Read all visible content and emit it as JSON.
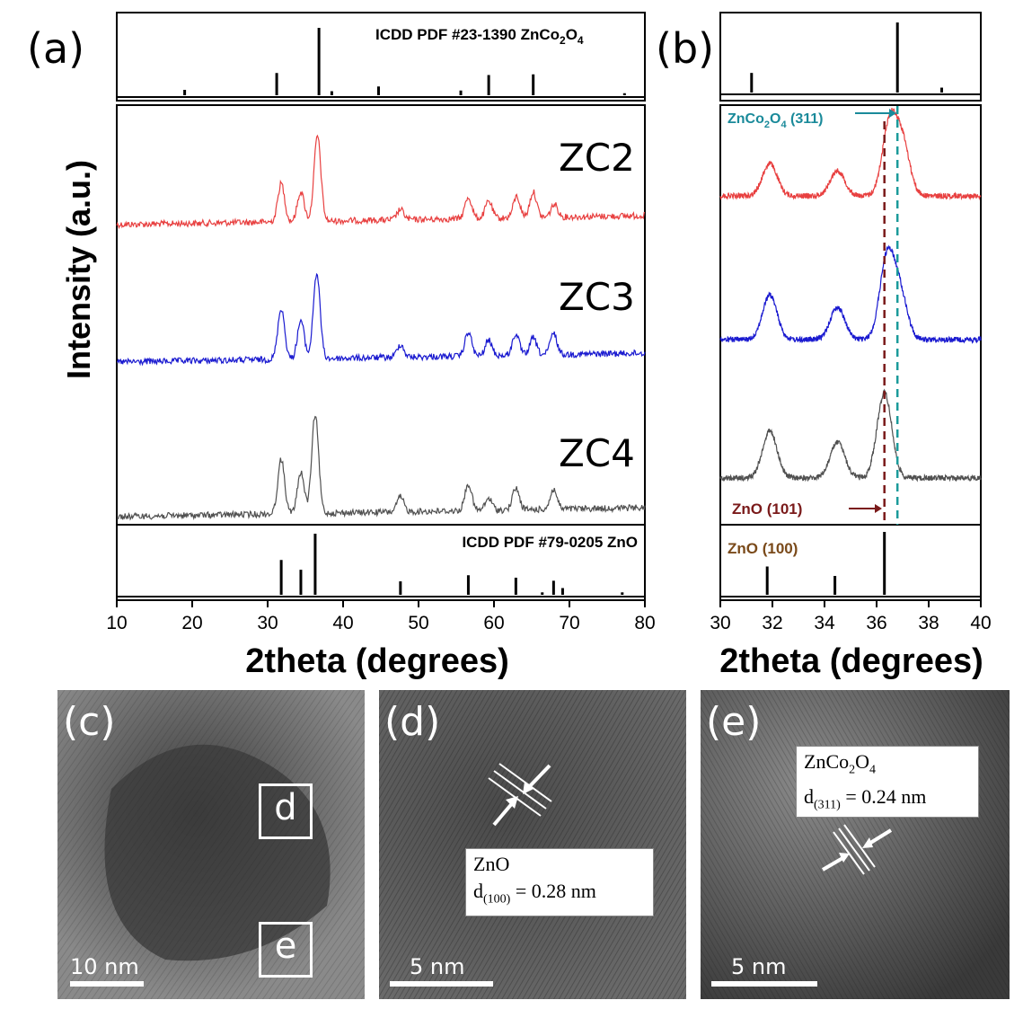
{
  "panel_labels": {
    "a": "(a)",
    "b": "(b)",
    "c": "(c)",
    "d": "(d)",
    "e": "(e)"
  },
  "colors": {
    "ZC2": "#e84040",
    "ZC3": "#1a1ad0",
    "ZC4": "#505050",
    "zno_marker": "#7a1a1a",
    "znco_marker": "#1a9a9a"
  },
  "chart_data": [
    {
      "type": "line",
      "panel": "(a)",
      "xlabel": "2theta (degrees)",
      "ylabel": "Intensity (a.u.)",
      "xlim": [
        10,
        80
      ],
      "xticks": [
        10,
        20,
        30,
        40,
        50,
        60,
        70,
        80
      ],
      "reference_top": {
        "label": "ICDD PDF #23-1390 ZnCo2O4",
        "peaks": [
          [
            19.0,
            0.08
          ],
          [
            31.2,
            0.33
          ],
          [
            36.8,
            1.0
          ],
          [
            38.5,
            0.06
          ],
          [
            44.7,
            0.13
          ],
          [
            55.6,
            0.07
          ],
          [
            59.3,
            0.3
          ],
          [
            65.2,
            0.31
          ],
          [
            77.3,
            0.03
          ]
        ]
      },
      "reference_bottom": {
        "label": "ICDD PDF #79-0205 ZnO",
        "peaks": [
          [
            31.8,
            0.57
          ],
          [
            34.4,
            0.41
          ],
          [
            36.3,
            1.0
          ],
          [
            47.6,
            0.22
          ],
          [
            56.6,
            0.32
          ],
          [
            62.9,
            0.28
          ],
          [
            66.4,
            0.04
          ],
          [
            67.9,
            0.23
          ],
          [
            69.1,
            0.11
          ],
          [
            77.0,
            0.04
          ]
        ]
      },
      "series": [
        {
          "name": "ZC2",
          "peaks": [
            [
              31.8,
              0.45
            ],
            [
              34.4,
              0.35
            ],
            [
              36.6,
              1.0
            ],
            [
              47.6,
              0.12
            ],
            [
              56.6,
              0.25
            ],
            [
              59.3,
              0.2
            ],
            [
              63.0,
              0.25
            ],
            [
              65.2,
              0.3
            ],
            [
              68.0,
              0.15
            ]
          ]
        },
        {
          "name": "ZC3",
          "peaks": [
            [
              31.8,
              0.6
            ],
            [
              34.4,
              0.45
            ],
            [
              36.5,
              1.0
            ],
            [
              47.6,
              0.15
            ],
            [
              56.6,
              0.28
            ],
            [
              59.3,
              0.18
            ],
            [
              62.9,
              0.25
            ],
            [
              65.2,
              0.2
            ],
            [
              67.9,
              0.25
            ]
          ]
        },
        {
          "name": "ZC4",
          "peaks": [
            [
              31.8,
              0.55
            ],
            [
              34.4,
              0.42
            ],
            [
              36.3,
              1.0
            ],
            [
              47.6,
              0.15
            ],
            [
              56.6,
              0.27
            ],
            [
              59.3,
              0.12
            ],
            [
              62.9,
              0.22
            ],
            [
              67.9,
              0.2
            ]
          ]
        }
      ]
    },
    {
      "type": "line",
      "panel": "(b)",
      "xlabel": "2theta (degrees)",
      "xlim": [
        30,
        40
      ],
      "xticks": [
        30,
        32,
        34,
        36,
        38,
        40
      ],
      "reference_top": {
        "peaks": [
          [
            31.2,
            0.28
          ],
          [
            36.8,
            1.0
          ],
          [
            38.5,
            0.07
          ]
        ]
      },
      "reference_bottom": {
        "peaks": [
          [
            31.8,
            0.45
          ],
          [
            34.4,
            0.3
          ],
          [
            36.3,
            1.0
          ]
        ]
      },
      "annotations": {
        "znco": "ZnCo2O4 (311)",
        "zno101": "ZnO (101)",
        "zno100": "ZnO (100)"
      },
      "marker_lines": {
        "zno": 36.3,
        "znco": 36.8
      },
      "series": [
        {
          "name": "ZC2",
          "peaks": [
            [
              31.9,
              0.45
            ],
            [
              34.5,
              0.35
            ],
            [
              36.5,
              1.0
            ],
            [
              37.0,
              0.7
            ]
          ]
        },
        {
          "name": "ZC3",
          "peaks": [
            [
              31.9,
              0.55
            ],
            [
              34.5,
              0.4
            ],
            [
              36.4,
              1.0
            ],
            [
              36.9,
              0.55
            ]
          ]
        },
        {
          "name": "ZC4",
          "peaks": [
            [
              31.9,
              0.55
            ],
            [
              34.5,
              0.42
            ],
            [
              36.3,
              1.0
            ]
          ]
        }
      ]
    }
  ],
  "tem": {
    "c": {
      "box_d": "d",
      "box_e": "e",
      "scale": "10 nm"
    },
    "d": {
      "text_line1": "ZnO",
      "text_line2_d": "d",
      "text_line2_sub": "(100)",
      "text_line2_rest": " = 0.28 nm",
      "scale": "5 nm"
    },
    "e": {
      "text_line1_main": "ZnCo",
      "text_line1_sub1": "2",
      "text_line1_mid": "O",
      "text_line1_sub2": "4",
      "text_line2_d": "d",
      "text_line2_sub": "(311)",
      "text_line2_rest": " = 0.24 nm",
      "scale": "5 nm"
    }
  }
}
